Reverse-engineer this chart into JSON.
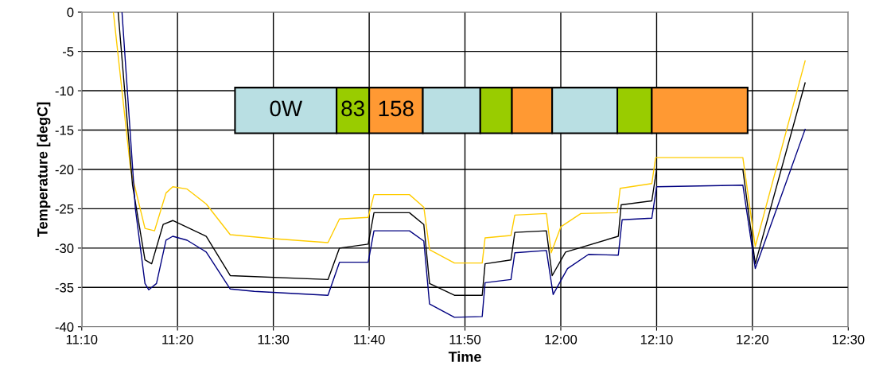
{
  "chart_data": {
    "type": "line",
    "xlabel": "Time",
    "ylabel": "Temperature [degC]",
    "xlim": [
      11.1667,
      12.5
    ],
    "xticks": [
      {
        "value": 11.1667,
        "label": "11:10"
      },
      {
        "value": 11.3333,
        "label": "11:20"
      },
      {
        "value": 11.5,
        "label": "11:30"
      },
      {
        "value": 11.6667,
        "label": "11:40"
      },
      {
        "value": 11.8333,
        "label": "11:50"
      },
      {
        "value": 12.0,
        "label": "12:00"
      },
      {
        "value": 12.1667,
        "label": "12:10"
      },
      {
        "value": 12.3333,
        "label": "12:20"
      },
      {
        "value": 12.5,
        "label": "12:30"
      }
    ],
    "ylim": [
      -40,
      0
    ],
    "yticks": [
      -40,
      -35,
      -30,
      -25,
      -20,
      -15,
      -10,
      -5,
      0
    ],
    "grid": true,
    "marker": "none",
    "line_style": "solid",
    "series": [
      {
        "color": "#ffcc00",
        "x": [
          11.2217,
          11.2517,
          11.2767,
          11.2933,
          11.3133,
          11.325,
          11.35,
          11.3833,
          11.425,
          11.5,
          11.595,
          11.615,
          11.665,
          11.675,
          11.7367,
          11.7617,
          11.7717,
          11.815,
          11.8633,
          11.8683,
          11.9133,
          11.92,
          11.975,
          11.9833,
          12.0,
          12.035,
          12.0983,
          12.1033,
          12.1583,
          12.165,
          12.3167,
          12.3383,
          12.425
        ],
        "values": [
          0,
          -20,
          -27.5,
          -27.8,
          -23,
          -22.2,
          -22.5,
          -24.4,
          -28.3,
          -28.8,
          -29.3,
          -26.3,
          -26.1,
          -23.2,
          -23.2,
          -24.8,
          -30.2,
          -31.9,
          -31.9,
          -28.7,
          -28.4,
          -25.8,
          -25.6,
          -30.6,
          -27.3,
          -25.6,
          -25.5,
          -22.4,
          -21.8,
          -18.5,
          -18.5,
          -29.8,
          -6.2
        ]
      },
      {
        "color": "#000000",
        "x": [
          11.23,
          11.255,
          11.2767,
          11.2883,
          11.3083,
          11.325,
          11.3833,
          11.425,
          11.595,
          11.615,
          11.665,
          11.675,
          11.7367,
          11.7617,
          11.7717,
          11.815,
          11.8633,
          11.8683,
          11.9133,
          11.92,
          11.975,
          11.985,
          12.0083,
          12.1,
          12.105,
          12.1583,
          12.1667,
          12.3167,
          12.3383,
          12.425
        ],
        "values": [
          0,
          -22,
          -31.5,
          -32,
          -27,
          -26.5,
          -28.5,
          -33.5,
          -34,
          -30,
          -29.5,
          -25.5,
          -25.5,
          -27,
          -34.5,
          -36,
          -36,
          -32,
          -31.5,
          -28,
          -27.8,
          -33.5,
          -30.5,
          -28.5,
          -24.5,
          -24,
          -20,
          -20,
          -32,
          -9
        ]
      },
      {
        "color": "#000080",
        "x": [
          11.2367,
          11.26,
          11.2767,
          11.2833,
          11.2967,
          11.3133,
          11.325,
          11.35,
          11.3833,
          11.425,
          11.4667,
          11.595,
          11.615,
          11.665,
          11.675,
          11.7367,
          11.7617,
          11.7717,
          11.815,
          11.8633,
          11.8683,
          11.9133,
          11.92,
          11.975,
          11.9867,
          12.0117,
          12.0483,
          12.1,
          12.1067,
          12.1583,
          12.1667,
          12.3167,
          12.3383,
          12.425
        ],
        "values": [
          0,
          -25,
          -34.5,
          -35.3,
          -34.5,
          -29,
          -28.5,
          -29,
          -30.5,
          -35.2,
          -35.5,
          -36.0,
          -31.8,
          -31.8,
          -27.8,
          -27.8,
          -29.1,
          -37.1,
          -38.8,
          -38.7,
          -34.4,
          -34.0,
          -30.6,
          -30.3,
          -35.9,
          -32.6,
          -30.8,
          -30.9,
          -26.4,
          -26.2,
          -22.2,
          -22.0,
          -32.6,
          -14.9
        ]
      }
    ],
    "bands": [
      {
        "axis": "x",
        "from": 11.4333,
        "to": 11.61,
        "label": "0W",
        "color": "#b9dfe3"
      },
      {
        "axis": "x",
        "from": 11.61,
        "to": 11.6667,
        "label": "83",
        "color": "#99cc00"
      },
      {
        "axis": "x",
        "from": 11.6667,
        "to": 11.76,
        "label": "158",
        "color": "#ff9933"
      },
      {
        "axis": "x",
        "from": 11.76,
        "to": 11.86,
        "color": "#b9dfe3"
      },
      {
        "axis": "x",
        "from": 11.86,
        "to": 11.915,
        "color": "#99cc00"
      },
      {
        "axis": "x",
        "from": 11.915,
        "to": 11.985,
        "color": "#ff9933"
      },
      {
        "axis": "x",
        "from": 11.985,
        "to": 12.0983,
        "color": "#b9dfe3"
      },
      {
        "axis": "x",
        "from": 12.0983,
        "to": 12.1583,
        "color": "#99cc00"
      },
      {
        "axis": "x",
        "from": 12.1583,
        "to": 12.325,
        "color": "#ff9933"
      }
    ]
  }
}
